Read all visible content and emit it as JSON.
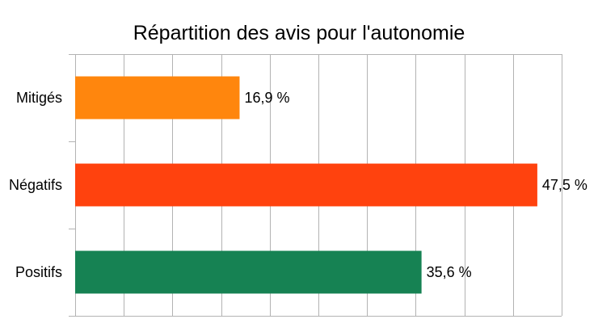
{
  "chart_data": {
    "type": "bar",
    "orientation": "horizontal",
    "title": "Répartition des avis pour l'autonomie",
    "categories": [
      "Mitigés",
      "Négatifs",
      "Positifs"
    ],
    "values": [
      16.9,
      47.5,
      35.6
    ],
    "value_labels": [
      "16,9 %",
      "47,5 %",
      "35,6 %"
    ],
    "colors": [
      "#ff860d",
      "#ff420e",
      "#168253"
    ],
    "xlim": [
      0,
      50
    ],
    "grid": true,
    "legend": "none"
  }
}
